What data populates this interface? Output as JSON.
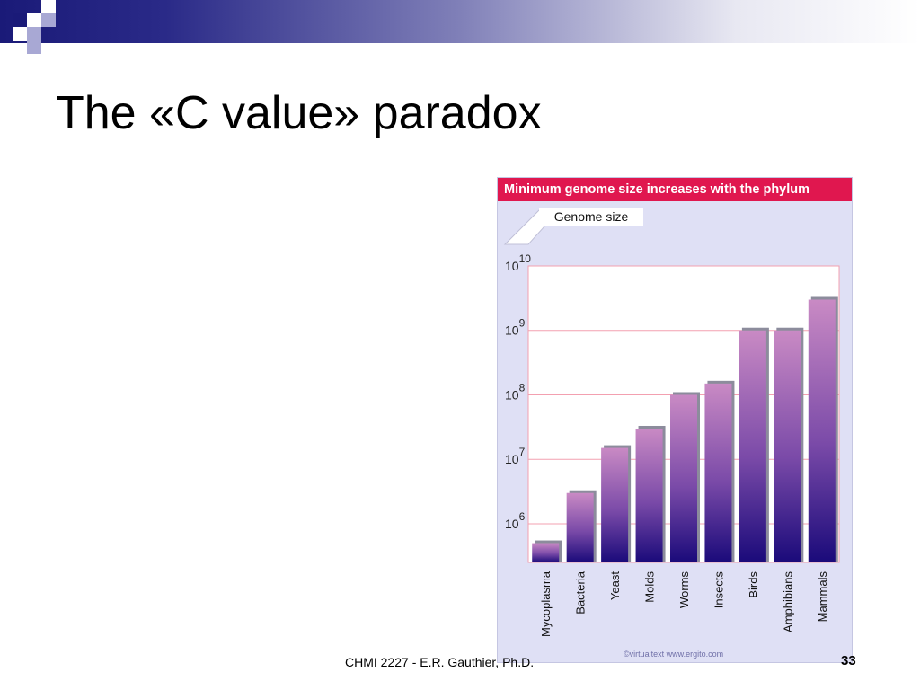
{
  "slide": {
    "title": "The «C value» paradox",
    "footer": "CHMI 2227 - E.R. Gauthier, Ph.D.",
    "page_number": "33"
  },
  "figure": {
    "header": "Minimum genome size increases with the phylum",
    "credit": "©virtualtext  www.ergito.com",
    "colors": {
      "header": "#e0174f",
      "panel": "#dfe0f5",
      "bar_top": "#c98ac4",
      "bar_bottom": "#1a0a7a",
      "gridline": "#f3a0b0"
    }
  },
  "chart_data": {
    "type": "bar",
    "ylabel": "Genome size",
    "yscale": "log",
    "ylim_exponent": [
      5.4,
      10.0
    ],
    "yticks": [
      {
        "base": "10",
        "exp": "6",
        "value": 1000000
      },
      {
        "base": "10",
        "exp": "7",
        "value": 10000000
      },
      {
        "base": "10",
        "exp": "8",
        "value": 100000000
      },
      {
        "base": "10",
        "exp": "9",
        "value": 1000000000
      },
      {
        "base": "10",
        "exp": "10",
        "value": 10000000000
      }
    ],
    "categories": [
      "Mycoplasma",
      "Bacteria",
      "Yeast",
      "Molds",
      "Worms",
      "Insects",
      "Birds",
      "Amphibians",
      "Mammals"
    ],
    "values": [
      500000,
      3000000,
      15000000,
      30000000,
      100000000,
      150000000,
      1000000000,
      1000000000,
      3000000000
    ],
    "grid": true,
    "legend": "none"
  }
}
